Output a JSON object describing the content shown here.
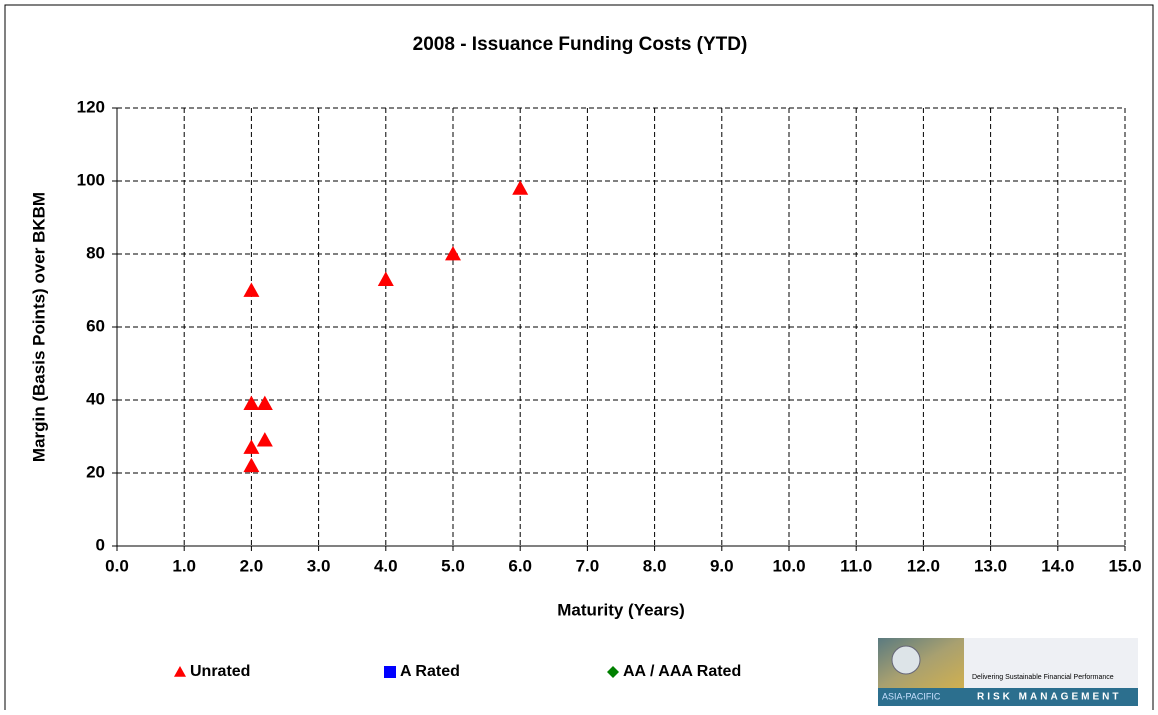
{
  "chart_data": {
    "type": "scatter",
    "title": "2008 - Issuance Funding Costs (YTD)",
    "x_label": "Maturity (Years)",
    "y_label": "Margin (Basis Points) over BKBM",
    "xlim": [
      0,
      15
    ],
    "ylim": [
      0,
      120
    ],
    "xticks": [
      {
        "value": 0,
        "label": "0.0"
      },
      {
        "value": 1,
        "label": "1.0"
      },
      {
        "value": 2,
        "label": "2.0"
      },
      {
        "value": 3,
        "label": "3.0"
      },
      {
        "value": 4,
        "label": "4.0"
      },
      {
        "value": 5,
        "label": "5.0"
      },
      {
        "value": 6,
        "label": "6.0"
      },
      {
        "value": 7,
        "label": "7.0"
      },
      {
        "value": 8,
        "label": "8.0"
      },
      {
        "value": 9,
        "label": "9.0"
      },
      {
        "value": 10,
        "label": "10.0"
      },
      {
        "value": 11,
        "label": "11.0"
      },
      {
        "value": 12,
        "label": "12.0"
      },
      {
        "value": 13,
        "label": "13.0"
      },
      {
        "value": 14,
        "label": "14.0"
      },
      {
        "value": 15,
        "label": "15.0"
      }
    ],
    "yticks": [
      0,
      20,
      40,
      60,
      80,
      100,
      120
    ],
    "grid": true,
    "legend": "bottom",
    "series": [
      {
        "name": "Unrated",
        "color": "#ff0000",
        "marker": "triangle",
        "x": [
          2,
          2,
          2.2,
          2,
          2.2,
          2,
          4,
          5,
          6
        ],
        "values": [
          70,
          39,
          39,
          27,
          29,
          22,
          73,
          80,
          98
        ]
      },
      {
        "name": "A Rated",
        "color": "#0000ff",
        "marker": "square",
        "x": [],
        "values": []
      },
      {
        "name": "AA / AAA Rated",
        "color": "#008000",
        "marker": "diamond",
        "x": [],
        "values": []
      }
    ]
  },
  "logo": {
    "tagline": "Delivering Sustainable Financial Performance",
    "region": "ASIA-PACIFIC",
    "brand": "RISK MANAGEMENT"
  }
}
